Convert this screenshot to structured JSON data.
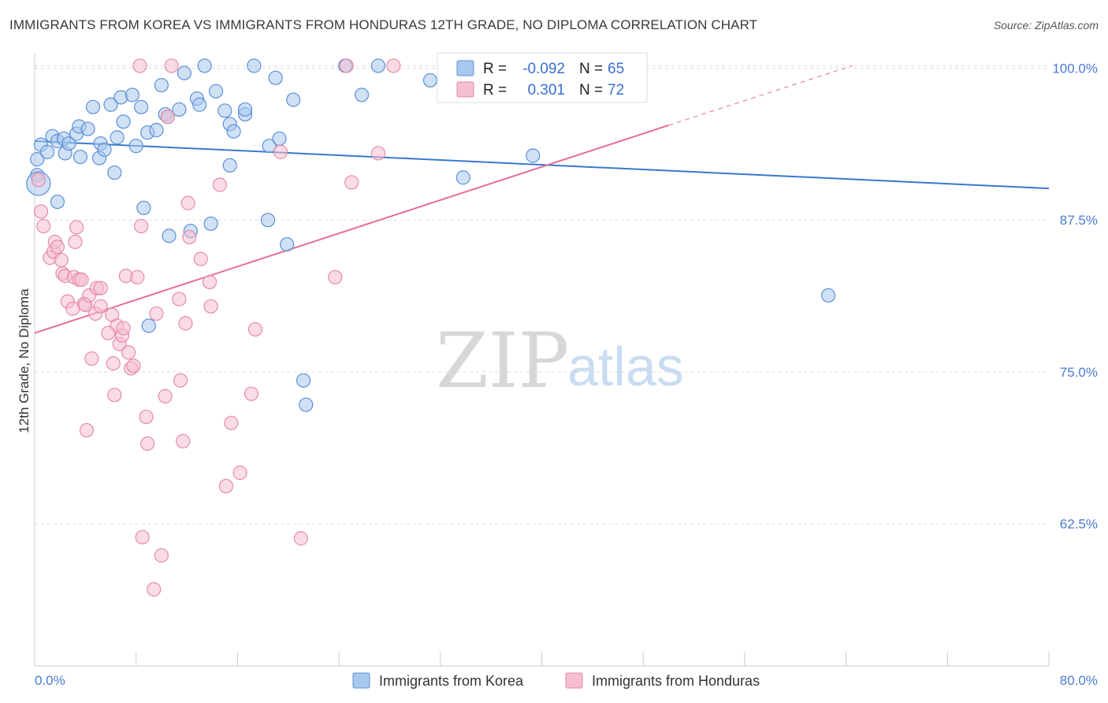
{
  "title": "IMMIGRANTS FROM KOREA VS IMMIGRANTS FROM HONDURAS 12TH GRADE, NO DIPLOMA CORRELATION CHART",
  "source": "Source: ZipAtlas.com",
  "watermark": {
    "zip": "ZIP",
    "atlas": "atlas"
  },
  "legend": {
    "korea": {
      "r_label": "R =",
      "r_value": "-0.092",
      "n_label": "N =",
      "n_value": "65"
    },
    "honduras": {
      "r_label": "R =",
      "r_value": "0.301",
      "n_label": "N =",
      "n_value": "72"
    }
  },
  "colors": {
    "korea_fill": "#a9c8ee",
    "korea_stroke": "#5b8fd6",
    "korea_line": "#3a78d0",
    "honduras_fill": "#f5bfd0",
    "honduras_stroke": "#e58aa8",
    "honduras_line": "#e46f9a",
    "grid": "#dddddd",
    "tick_text": "#4a7bd0"
  },
  "chart_data": {
    "type": "scatter",
    "title": "IMMIGRANTS FROM KOREA VS IMMIGRANTS FROM HONDURAS 12TH GRADE, NO DIPLOMA CORRELATION CHART",
    "xlabel": "",
    "ylabel": "12th Grade, No Diploma",
    "xlim": [
      0,
      80
    ],
    "ylim": [
      50.8,
      101.2
    ],
    "x_tick_labels": [
      "0.0%",
      "80.0%"
    ],
    "y_ticks": [
      100.0,
      87.5,
      75.0,
      62.5
    ],
    "y_tick_labels": [
      "100.0%",
      "87.5%",
      "75.0%",
      "62.5%"
    ],
    "grid": true,
    "legend_position": "top-center",
    "series": [
      {
        "name": "Immigrants from Korea",
        "color": "#5b8fd6",
        "r": -0.092,
        "n": 65,
        "trend": {
          "x": [
            0,
            80
          ],
          "y": [
            94.0,
            90.1
          ]
        },
        "points": [
          [
            0.2,
            91.2
          ],
          [
            0.2,
            92.5
          ],
          [
            0.5,
            93.7
          ],
          [
            1.0,
            93.1
          ],
          [
            1.4,
            94.4
          ],
          [
            1.8,
            94.0
          ],
          [
            2.3,
            94.2
          ],
          [
            2.4,
            93.0
          ],
          [
            2.7,
            93.8
          ],
          [
            3.3,
            94.6
          ],
          [
            3.5,
            95.2
          ],
          [
            4.2,
            95.0
          ],
          [
            4.6,
            96.8
          ],
          [
            5.2,
            93.8
          ],
          [
            5.1,
            92.6
          ],
          [
            5.5,
            93.3
          ],
          [
            6.0,
            97.0
          ],
          [
            6.3,
            91.4
          ],
          [
            6.8,
            97.6
          ],
          [
            6.5,
            94.3
          ],
          [
            7.0,
            95.6
          ],
          [
            7.7,
            97.8
          ],
          [
            8.0,
            93.6
          ],
          [
            8.4,
            96.8
          ],
          [
            8.6,
            88.5
          ],
          [
            8.9,
            94.7
          ],
          [
            9.6,
            94.9
          ],
          [
            10.0,
            98.6
          ],
          [
            10.3,
            96.2
          ],
          [
            10.5,
            96.0
          ],
          [
            10.6,
            86.2
          ],
          [
            11.4,
            96.6
          ],
          [
            11.8,
            99.6
          ],
          [
            12.3,
            86.6
          ],
          [
            12.8,
            97.5
          ],
          [
            13.4,
            100.2
          ],
          [
            13.9,
            87.2
          ],
          [
            14.3,
            98.1
          ],
          [
            15.0,
            96.5
          ],
          [
            15.4,
            95.4
          ],
          [
            15.7,
            94.8
          ],
          [
            15.4,
            92.0
          ],
          [
            16.6,
            96.2
          ],
          [
            16.6,
            96.6
          ],
          [
            17.3,
            100.2
          ],
          [
            18.4,
            87.5
          ],
          [
            18.5,
            93.6
          ],
          [
            19.0,
            99.2
          ],
          [
            19.3,
            94.2
          ],
          [
            19.9,
            85.5
          ],
          [
            20.4,
            97.4
          ],
          [
            21.2,
            74.3
          ],
          [
            21.4,
            72.3
          ],
          [
            24.5,
            100.2
          ],
          [
            25.8,
            97.8
          ],
          [
            27.1,
            100.2
          ],
          [
            31.2,
            99.0
          ],
          [
            33.8,
            91.0
          ],
          [
            39.3,
            92.8
          ],
          [
            62.6,
            81.3
          ],
          [
            1.8,
            89.0
          ],
          [
            9.0,
            78.8
          ],
          [
            3.6,
            92.7
          ],
          [
            13.0,
            97.0
          ],
          [
            0.3,
            90.5
          ]
        ]
      },
      {
        "name": "Immigrants from Honduras",
        "color": "#e58aa8",
        "r": 0.301,
        "n": 72,
        "trend": {
          "x": [
            0,
            50
          ],
          "y": [
            78.2,
            95.3
          ]
        },
        "trend_dashed": {
          "x": [
            50,
            64.5
          ],
          "y": [
            95.3,
            100.2
          ]
        },
        "points": [
          [
            0.3,
            90.8
          ],
          [
            0.5,
            88.2
          ],
          [
            0.7,
            87.0
          ],
          [
            1.2,
            84.4
          ],
          [
            1.5,
            84.9
          ],
          [
            1.6,
            85.7
          ],
          [
            1.8,
            85.3
          ],
          [
            2.1,
            84.2
          ],
          [
            2.2,
            83.1
          ],
          [
            2.4,
            82.9
          ],
          [
            2.6,
            80.8
          ],
          [
            3.1,
            82.8
          ],
          [
            3.2,
            85.7
          ],
          [
            3.3,
            86.9
          ],
          [
            3.5,
            82.6
          ],
          [
            3.7,
            82.6
          ],
          [
            3.9,
            80.6
          ],
          [
            4.0,
            80.5
          ],
          [
            4.3,
            81.3
          ],
          [
            4.5,
            76.1
          ],
          [
            4.8,
            79.8
          ],
          [
            4.9,
            81.9
          ],
          [
            5.2,
            80.4
          ],
          [
            5.2,
            81.9
          ],
          [
            6.1,
            79.7
          ],
          [
            6.2,
            75.7
          ],
          [
            6.3,
            73.1
          ],
          [
            6.5,
            78.8
          ],
          [
            6.7,
            77.3
          ],
          [
            6.9,
            78.0
          ],
          [
            7.2,
            82.9
          ],
          [
            7.4,
            76.6
          ],
          [
            7.6,
            75.3
          ],
          [
            7.8,
            75.5
          ],
          [
            8.1,
            82.8
          ],
          [
            8.4,
            87.0
          ],
          [
            8.5,
            61.4
          ],
          [
            8.8,
            71.3
          ],
          [
            8.9,
            69.1
          ],
          [
            9.6,
            79.8
          ],
          [
            10.0,
            59.9
          ],
          [
            10.3,
            73.0
          ],
          [
            10.5,
            96.0
          ],
          [
            10.8,
            100.2
          ],
          [
            11.4,
            81.0
          ],
          [
            11.5,
            74.3
          ],
          [
            11.7,
            69.3
          ],
          [
            11.9,
            79.0
          ],
          [
            12.2,
            86.1
          ],
          [
            12.1,
            88.9
          ],
          [
            13.1,
            84.3
          ],
          [
            13.8,
            82.4
          ],
          [
            13.9,
            80.4
          ],
          [
            14.6,
            90.4
          ],
          [
            15.5,
            70.8
          ],
          [
            16.2,
            66.7
          ],
          [
            17.1,
            73.2
          ],
          [
            17.4,
            78.5
          ],
          [
            19.4,
            93.1
          ],
          [
            23.7,
            82.8
          ],
          [
            24.6,
            100.2
          ],
          [
            25.0,
            90.6
          ],
          [
            27.1,
            93.0
          ],
          [
            28.3,
            100.2
          ],
          [
            8.3,
            100.2
          ],
          [
            7.0,
            78.6
          ],
          [
            5.8,
            78.2
          ],
          [
            3.0,
            80.2
          ],
          [
            9.4,
            57.1
          ],
          [
            15.1,
            65.6
          ],
          [
            21.0,
            61.3
          ],
          [
            4.1,
            70.2
          ]
        ]
      }
    ]
  },
  "bottom_legend": {
    "korea": "Immigrants from Korea",
    "honduras": "Immigrants from Honduras"
  }
}
